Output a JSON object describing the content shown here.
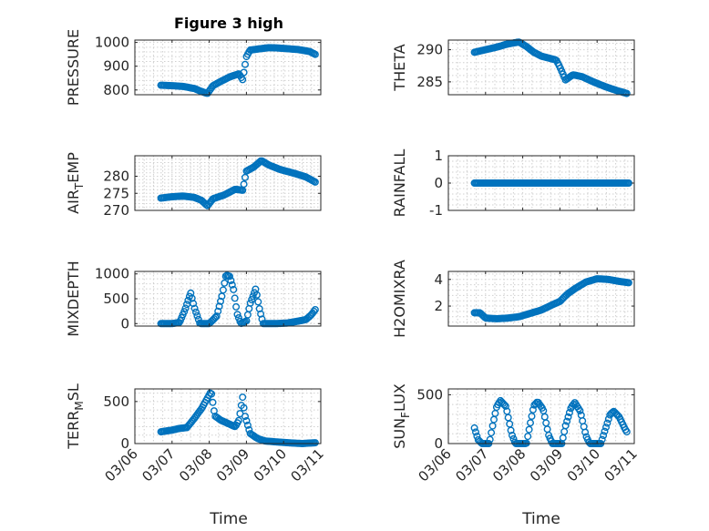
{
  "figure": {
    "title": "Figure 3 high",
    "xlabel": "Time",
    "date_ticks": [
      "03/06",
      "03/07",
      "03/08",
      "03/09",
      "03/10",
      "03/11"
    ],
    "marker_color": "#0072BD"
  },
  "chart_data": [
    {
      "id": "pressure",
      "type": "scatter",
      "ylabel": "PRESSURE",
      "xlim": [
        0,
        5
      ],
      "ylim": [
        780,
        1010
      ],
      "yticks": [
        800,
        900,
        1000
      ],
      "series": [
        {
          "name": "PRESSURE",
          "knots": [
            [
              0.7,
              820
            ],
            [
              1.0,
              818
            ],
            [
              1.3,
              815
            ],
            [
              1.6,
              806
            ],
            [
              1.8,
              793
            ],
            [
              1.95,
              785
            ],
            [
              2.1,
              818
            ],
            [
              2.3,
              835
            ],
            [
              2.55,
              855
            ],
            [
              2.8,
              868
            ],
            [
              2.9,
              843
            ],
            [
              3.0,
              940
            ],
            [
              3.1,
              968
            ],
            [
              3.3,
              972
            ],
            [
              3.6,
              978
            ],
            [
              3.8,
              977
            ],
            [
              4.0,
              975
            ],
            [
              4.4,
              970
            ],
            [
              4.7,
              962
            ],
            [
              4.85,
              950
            ]
          ]
        }
      ]
    },
    {
      "id": "theta",
      "type": "scatter",
      "ylabel": "THETA",
      "xlim": [
        0,
        5
      ],
      "ylim": [
        283,
        291.5
      ],
      "yticks": [
        285,
        290
      ],
      "series": [
        {
          "name": "THETA",
          "knots": [
            [
              0.7,
              289.6
            ],
            [
              1.0,
              290.0
            ],
            [
              1.3,
              290.4
            ],
            [
              1.6,
              290.9
            ],
            [
              1.9,
              291.2
            ],
            [
              2.1,
              290.5
            ],
            [
              2.3,
              289.6
            ],
            [
              2.5,
              289.0
            ],
            [
              2.7,
              288.7
            ],
            [
              2.9,
              288.4
            ],
            [
              3.0,
              287.3
            ],
            [
              3.15,
              285.3
            ],
            [
              3.35,
              286.1
            ],
            [
              3.6,
              285.8
            ],
            [
              3.9,
              285.0
            ],
            [
              4.2,
              284.3
            ],
            [
              4.5,
              283.7
            ],
            [
              4.8,
              283.2
            ]
          ]
        }
      ]
    },
    {
      "id": "air_temp",
      "type": "scatter",
      "ylabel": "AIR_TEMP",
      "xlim": [
        0,
        5
      ],
      "ylim": [
        270,
        286
      ],
      "yticks": [
        270,
        275,
        280
      ],
      "series": [
        {
          "name": "AIR_TEMP",
          "knots": [
            [
              0.7,
              273.6
            ],
            [
              1.0,
              274.0
            ],
            [
              1.3,
              274.2
            ],
            [
              1.6,
              273.8
            ],
            [
              1.8,
              272.9
            ],
            [
              1.95,
              271.3
            ],
            [
              2.1,
              273.4
            ],
            [
              2.4,
              274.5
            ],
            [
              2.7,
              276.2
            ],
            [
              2.9,
              275.9
            ],
            [
              3.0,
              281.5
            ],
            [
              3.2,
              282.7
            ],
            [
              3.4,
              284.6
            ],
            [
              3.6,
              283.3
            ],
            [
              3.9,
              282.0
            ],
            [
              4.3,
              280.8
            ],
            [
              4.6,
              279.8
            ],
            [
              4.85,
              278.3
            ]
          ]
        }
      ]
    },
    {
      "id": "rainfall",
      "type": "scatter",
      "ylabel": "RAINFALL",
      "xlim": [
        0,
        5
      ],
      "ylim": [
        -1,
        1
      ],
      "yticks": [
        -1,
        0,
        1
      ],
      "series": [
        {
          "name": "RAINFALL",
          "knots": [
            [
              0.7,
              0
            ],
            [
              4.85,
              0
            ]
          ]
        }
      ]
    },
    {
      "id": "mixdepth",
      "type": "scatter",
      "ylabel": "MIXDEPTH",
      "xlim": [
        0,
        5
      ],
      "ylim": [
        -50,
        1050
      ],
      "yticks": [
        0,
        500,
        1000
      ],
      "series": [
        {
          "name": "MIXDEPTH",
          "knots": [
            [
              0.7,
              0
            ],
            [
              1.0,
              0
            ],
            [
              1.2,
              20
            ],
            [
              1.35,
              280
            ],
            [
              1.5,
              620
            ],
            [
              1.6,
              320
            ],
            [
              1.75,
              0
            ],
            [
              2.0,
              0
            ],
            [
              2.2,
              150
            ],
            [
              2.35,
              580
            ],
            [
              2.45,
              980
            ],
            [
              2.55,
              950
            ],
            [
              2.65,
              700
            ],
            [
              2.75,
              200
            ],
            [
              2.85,
              0
            ],
            [
              3.0,
              50
            ],
            [
              3.1,
              400
            ],
            [
              3.25,
              700
            ],
            [
              3.35,
              300
            ],
            [
              3.45,
              0
            ],
            [
              3.8,
              0
            ],
            [
              4.1,
              10
            ],
            [
              4.4,
              50
            ],
            [
              4.6,
              80
            ],
            [
              4.75,
              180
            ],
            [
              4.85,
              280
            ]
          ]
        }
      ]
    },
    {
      "id": "h2omixra",
      "type": "scatter",
      "ylabel": "H2OMIXRA",
      "xlim": [
        0,
        5
      ],
      "ylim": [
        0.5,
        4.6
      ],
      "yticks": [
        2,
        4
      ],
      "series": [
        {
          "name": "H2OMIXRA",
          "knots": [
            [
              0.7,
              1.5
            ],
            [
              0.85,
              1.5
            ],
            [
              1.0,
              1.1
            ],
            [
              1.3,
              1.05
            ],
            [
              1.6,
              1.1
            ],
            [
              1.9,
              1.2
            ],
            [
              2.2,
              1.45
            ],
            [
              2.5,
              1.7
            ],
            [
              2.8,
              2.1
            ],
            [
              3.0,
              2.35
            ],
            [
              3.2,
              2.9
            ],
            [
              3.4,
              3.3
            ],
            [
              3.7,
              3.8
            ],
            [
              4.0,
              4.05
            ],
            [
              4.3,
              4.0
            ],
            [
              4.6,
              3.85
            ],
            [
              4.85,
              3.75
            ]
          ]
        }
      ]
    },
    {
      "id": "terr_msl",
      "type": "scatter",
      "ylabel": "TERR_MSL",
      "xlim": [
        0,
        5
      ],
      "ylim": [
        0,
        650
      ],
      "yticks": [
        0,
        500
      ],
      "series": [
        {
          "name": "TERR_MSL",
          "knots": [
            [
              0.7,
              140
            ],
            [
              1.0,
              160
            ],
            [
              1.2,
              180
            ],
            [
              1.4,
              190
            ],
            [
              1.6,
              300
            ],
            [
              1.8,
              420
            ],
            [
              1.95,
              540
            ],
            [
              2.05,
              620
            ],
            [
              2.15,
              330
            ],
            [
              2.3,
              280
            ],
            [
              2.5,
              240
            ],
            [
              2.7,
              200
            ],
            [
              2.8,
              280
            ],
            [
              2.9,
              560
            ],
            [
              2.95,
              350
            ],
            [
              3.1,
              120
            ],
            [
              3.3,
              60
            ],
            [
              3.5,
              30
            ],
            [
              3.8,
              20
            ],
            [
              4.1,
              10
            ],
            [
              4.5,
              0
            ],
            [
              4.85,
              10
            ]
          ]
        }
      ]
    },
    {
      "id": "sun_flux",
      "type": "scatter",
      "ylabel": "SUN_FLUX",
      "xlim": [
        0,
        5
      ],
      "ylim": [
        0,
        560
      ],
      "yticks": [
        0,
        500
      ],
      "series": [
        {
          "name": "SUN_FLUX",
          "knots": [
            [
              0.7,
              160
            ],
            [
              0.8,
              40
            ],
            [
              0.9,
              0
            ],
            [
              1.1,
              0
            ],
            [
              1.2,
              200
            ],
            [
              1.3,
              380
            ],
            [
              1.4,
              440
            ],
            [
              1.55,
              380
            ],
            [
              1.7,
              100
            ],
            [
              1.8,
              0
            ],
            [
              2.1,
              0
            ],
            [
              2.2,
              200
            ],
            [
              2.3,
              390
            ],
            [
              2.4,
              430
            ],
            [
              2.55,
              350
            ],
            [
              2.7,
              80
            ],
            [
              2.8,
              0
            ],
            [
              3.05,
              0
            ],
            [
              3.15,
              180
            ],
            [
              3.3,
              370
            ],
            [
              3.4,
              420
            ],
            [
              3.55,
              330
            ],
            [
              3.7,
              80
            ],
            [
              3.8,
              0
            ],
            [
              4.1,
              0
            ],
            [
              4.2,
              120
            ],
            [
              4.35,
              300
            ],
            [
              4.45,
              330
            ],
            [
              4.6,
              270
            ],
            [
              4.75,
              150
            ],
            [
              4.8,
              120
            ]
          ]
        }
      ]
    }
  ]
}
